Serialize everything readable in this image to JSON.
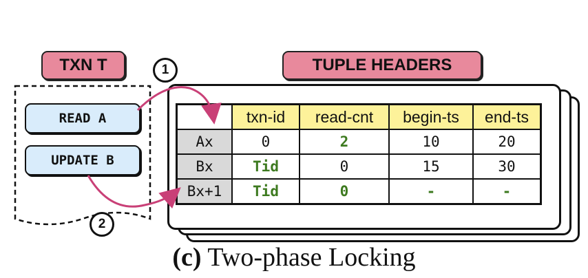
{
  "transaction": {
    "title": "TXN T",
    "operations": [
      "READ A",
      "UPDATE B"
    ]
  },
  "tuple_headers": {
    "title": "TUPLE HEADERS",
    "columns": [
      "txn-id",
      "read-cnt",
      "begin-ts",
      "end-ts"
    ],
    "rows": [
      {
        "label": "Ax",
        "txn_id": "0",
        "read_cnt": "2",
        "begin_ts": "10",
        "end_ts": "20"
      },
      {
        "label": "Bx",
        "txn_id": "Tid",
        "read_cnt": "0",
        "begin_ts": "15",
        "end_ts": "30"
      },
      {
        "label": "Bx+1",
        "txn_id": "Tid",
        "read_cnt": "0",
        "begin_ts": "-",
        "end_ts": "-"
      }
    ]
  },
  "steps": [
    "1",
    "2"
  ],
  "caption": {
    "prefix": "(c)",
    "text": "Two-phase Locking"
  },
  "colors": {
    "label_pink": "#e8899c",
    "header_yellow": "#fdf29a",
    "row_label_gray": "#d9d9d9",
    "op_blue": "#d9ecfb",
    "arrow_magenta": "#c94077",
    "highlight_green": "#3d7a1f"
  }
}
